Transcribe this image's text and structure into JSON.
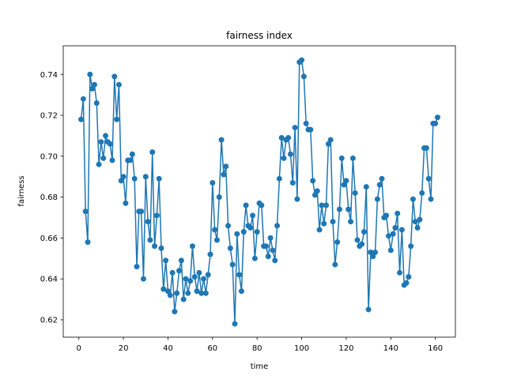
{
  "chart_data": {
    "type": "line",
    "title": "fairness index",
    "x_label": "time",
    "y_label": "fairness",
    "color": "#1f77b4",
    "markers": true,
    "x": [
      1,
      2,
      3,
      4,
      5,
      6,
      7,
      8,
      9,
      10,
      11,
      12,
      13,
      14,
      15,
      16,
      17,
      18,
      19,
      20,
      21,
      22,
      23,
      24,
      25,
      26,
      27,
      28,
      29,
      30,
      31,
      32,
      33,
      34,
      35,
      36,
      37,
      38,
      39,
      40,
      41,
      42,
      43,
      44,
      45,
      46,
      47,
      48,
      49,
      50,
      51,
      52,
      53,
      54,
      55,
      56,
      57,
      58,
      59,
      60,
      61,
      62,
      63,
      64,
      65,
      66,
      67,
      68,
      69,
      70,
      71,
      72,
      73,
      74,
      75,
      76,
      77,
      78,
      79,
      80,
      81,
      82,
      83,
      84,
      85,
      86,
      87,
      88,
      89,
      90,
      91,
      92,
      93,
      94,
      95,
      96,
      97,
      98,
      99,
      100,
      101,
      102,
      103,
      104,
      105,
      106,
      107,
      108,
      109,
      110,
      111,
      112,
      113,
      114,
      115,
      116,
      117,
      118,
      119,
      120,
      121,
      122,
      123,
      124,
      125,
      126,
      127,
      128,
      129,
      130,
      131,
      132,
      133,
      134,
      135,
      136,
      137,
      138,
      139,
      140,
      141,
      142,
      143,
      144,
      145,
      146,
      147,
      148,
      149,
      150,
      151,
      152,
      153,
      154,
      155,
      156,
      157,
      158,
      159,
      160,
      161
    ],
    "values": [
      0.718,
      0.728,
      0.673,
      0.658,
      0.74,
      0.733,
      0.735,
      0.726,
      0.696,
      0.707,
      0.699,
      0.71,
      0.707,
      0.706,
      0.698,
      0.739,
      0.718,
      0.735,
      0.688,
      0.69,
      0.677,
      0.698,
      0.698,
      0.701,
      0.689,
      0.646,
      0.673,
      0.673,
      0.64,
      0.69,
      0.668,
      0.659,
      0.702,
      0.656,
      0.671,
      0.689,
      0.655,
      0.635,
      0.649,
      0.634,
      0.632,
      0.643,
      0.624,
      0.633,
      0.644,
      0.649,
      0.63,
      0.64,
      0.633,
      0.639,
      0.656,
      0.641,
      0.634,
      0.643,
      0.633,
      0.64,
      0.633,
      0.642,
      0.652,
      0.687,
      0.664,
      0.659,
      0.68,
      0.708,
      0.691,
      0.695,
      0.666,
      0.655,
      0.647,
      0.618,
      0.662,
      0.642,
      0.634,
      0.663,
      0.676,
      0.666,
      0.665,
      0.671,
      0.65,
      0.663,
      0.677,
      0.676,
      0.656,
      0.656,
      0.651,
      0.66,
      0.654,
      0.649,
      0.666,
      0.689,
      0.709,
      0.699,
      0.708,
      0.709,
      0.701,
      0.687,
      0.714,
      0.679,
      0.746,
      0.747,
      0.739,
      0.716,
      0.713,
      0.713,
      0.688,
      0.681,
      0.683,
      0.664,
      0.676,
      0.667,
      0.676,
      0.706,
      0.708,
      0.668,
      0.647,
      0.658,
      0.674,
      0.699,
      0.686,
      0.688,
      0.674,
      0.668,
      0.699,
      0.682,
      0.659,
      0.656,
      0.657,
      0.663,
      0.685,
      0.625,
      0.653,
      0.651,
      0.653,
      0.679,
      0.686,
      0.689,
      0.67,
      0.671,
      0.661,
      0.654,
      0.662,
      0.665,
      0.672,
      0.643,
      0.664,
      0.637,
      0.638,
      0.641,
      0.656,
      0.679,
      0.668,
      0.665,
      0.669,
      0.682,
      0.704,
      0.704,
      0.689,
      0.679,
      0.716,
      0.716,
      0.719
    ],
    "xlim": [
      -7,
      169
    ],
    "xticks": [
      0,
      20,
      40,
      60,
      80,
      100,
      120,
      140,
      160
    ],
    "ylim": [
      0.6115,
      0.754
    ],
    "yticks": [
      0.62,
      0.64,
      0.66,
      0.68,
      {
        "value": 0.7,
        "label": "0.70"
      },
      0.72,
      0.74
    ]
  }
}
